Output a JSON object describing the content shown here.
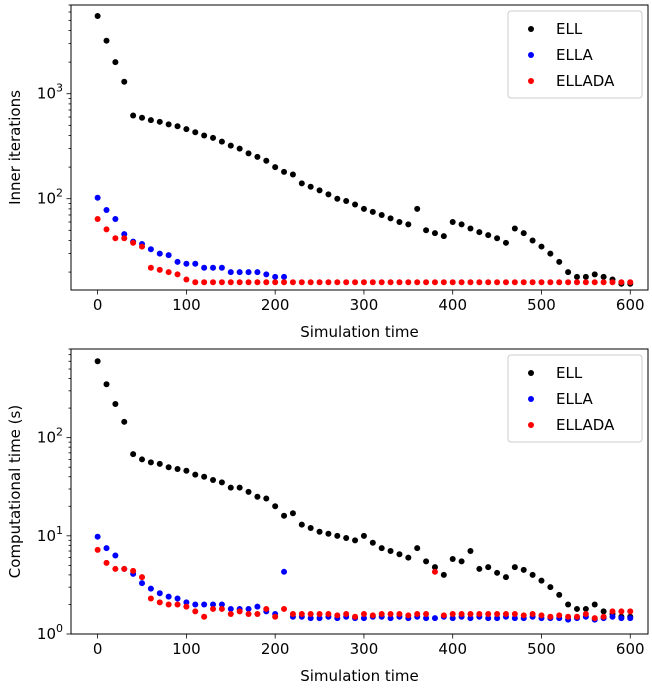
{
  "chart_data": [
    {
      "type": "scatter",
      "title": "",
      "xlabel": "Simulation time",
      "ylabel": "Inner iterations",
      "yscale": "log",
      "xlim": [
        -30,
        620
      ],
      "ylim": [
        13.5,
        7000
      ],
      "xticks": [
        0,
        100,
        200,
        300,
        400,
        500,
        600
      ],
      "yticks": [
        {
          "value": 100,
          "base": "10",
          "exp": "2"
        },
        {
          "value": 1000,
          "base": "10",
          "exp": "3"
        }
      ],
      "legend_position": "top-right",
      "series": [
        {
          "name": "ELL",
          "color": "#000000",
          "x": [
            0,
            10,
            20,
            30,
            40,
            50,
            60,
            70,
            80,
            90,
            100,
            110,
            120,
            130,
            140,
            150,
            160,
            170,
            180,
            190,
            200,
            210,
            220,
            230,
            240,
            250,
            260,
            270,
            280,
            290,
            300,
            310,
            320,
            330,
            340,
            350,
            360,
            370,
            380,
            390,
            400,
            410,
            420,
            430,
            440,
            450,
            460,
            470,
            480,
            490,
            500,
            510,
            520,
            530,
            540,
            550,
            560,
            570,
            580,
            590,
            600
          ],
          "y": [
            5500,
            3200,
            2000,
            1300,
            620,
            590,
            560,
            540,
            510,
            490,
            460,
            430,
            400,
            380,
            350,
            320,
            300,
            270,
            250,
            230,
            200,
            180,
            170,
            140,
            130,
            120,
            110,
            100,
            95,
            88,
            80,
            75,
            70,
            65,
            60,
            57,
            80,
            50,
            47,
            44,
            60,
            57,
            52,
            48,
            45,
            42,
            38,
            52,
            47,
            40,
            35,
            30,
            25,
            20,
            18,
            18,
            19,
            18,
            17,
            15.5,
            15.5
          ]
        },
        {
          "name": "ELLA",
          "color": "#0000ff",
          "x": [
            0,
            10,
            20,
            30,
            40,
            50,
            60,
            70,
            80,
            90,
            100,
            110,
            120,
            130,
            140,
            150,
            160,
            170,
            180,
            190,
            200,
            210
          ],
          "y": [
            102,
            78,
            64,
            46,
            39,
            37,
            33,
            30,
            29,
            25,
            24,
            24,
            22,
            22,
            22,
            20,
            20,
            20,
            20,
            19,
            18,
            18
          ]
        },
        {
          "name": "ELLADA",
          "color": "#ff0000",
          "x": [
            0,
            10,
            20,
            30,
            40,
            50,
            60,
            70,
            80,
            90,
            100,
            110,
            120,
            130,
            140,
            150,
            160,
            170,
            180,
            190,
            200,
            210,
            220,
            230,
            240,
            250,
            260,
            270,
            280,
            290,
            300,
            310,
            320,
            330,
            340,
            350,
            360,
            370,
            380,
            390,
            400,
            410,
            420,
            430,
            440,
            450,
            460,
            470,
            480,
            490,
            500,
            510,
            520,
            530,
            540,
            550,
            560,
            570,
            580,
            590,
            600
          ],
          "y": [
            64,
            51,
            42,
            42,
            38,
            35,
            22,
            21,
            20,
            19,
            17,
            16,
            16,
            16,
            16,
            16,
            16,
            16,
            16,
            16,
            16,
            16,
            16,
            16,
            16,
            16,
            16,
            16,
            16,
            16,
            16,
            16,
            16,
            16,
            16,
            16,
            16,
            16,
            16,
            16,
            16,
            16,
            16,
            16,
            16,
            16,
            16,
            16,
            16,
            16,
            16,
            16,
            16,
            16,
            16,
            16,
            16,
            16,
            16,
            16,
            16
          ]
        }
      ]
    },
    {
      "type": "scatter",
      "title": "",
      "xlabel": "Simulation time",
      "ylabel": "Computational time (s)",
      "yscale": "log",
      "xlim": [
        -30,
        620
      ],
      "ylim": [
        1,
        800
      ],
      "xticks": [
        0,
        100,
        200,
        300,
        400,
        500,
        600
      ],
      "yticks": [
        {
          "value": 1,
          "base": "10",
          "exp": "0"
        },
        {
          "value": 10,
          "base": "10",
          "exp": "1"
        },
        {
          "value": 100,
          "base": "10",
          "exp": "2"
        }
      ],
      "legend_position": "top-right",
      "series": [
        {
          "name": "ELL",
          "color": "#000000",
          "x": [
            0,
            10,
            20,
            30,
            40,
            50,
            60,
            70,
            80,
            90,
            100,
            110,
            120,
            130,
            140,
            150,
            160,
            170,
            180,
            190,
            200,
            210,
            220,
            230,
            240,
            250,
            260,
            270,
            280,
            290,
            300,
            310,
            320,
            330,
            340,
            350,
            360,
            370,
            380,
            390,
            400,
            410,
            420,
            430,
            440,
            450,
            460,
            470,
            480,
            490,
            500,
            510,
            520,
            530,
            540,
            550,
            560,
            570,
            580,
            590,
            600
          ],
          "y": [
            600,
            350,
            220,
            145,
            68,
            60,
            56,
            54,
            50,
            48,
            46,
            42,
            40,
            37,
            35,
            31,
            31,
            28,
            25,
            24,
            20,
            16,
            17,
            13,
            12,
            11,
            10.5,
            10,
            9.5,
            9,
            10,
            8.5,
            7.5,
            7,
            6.5,
            6,
            7.5,
            5.5,
            4.8,
            4.0,
            5.8,
            5.5,
            7,
            4.6,
            4.8,
            4.2,
            3.8,
            4.8,
            4.5,
            4.0,
            3.5,
            3.0,
            2.5,
            2.0,
            1.8,
            1.8,
            2.0,
            1.7,
            1.6,
            1.5,
            1.5
          ]
        },
        {
          "name": "ELLA",
          "color": "#0000ff",
          "x": [
            0,
            10,
            20,
            30,
            40,
            50,
            60,
            70,
            80,
            90,
            100,
            110,
            120,
            130,
            140,
            150,
            160,
            170,
            180,
            190,
            200,
            210,
            220,
            230,
            240,
            250,
            260,
            270,
            280,
            290,
            300,
            310,
            320,
            330,
            340,
            350,
            360,
            370,
            380,
            390,
            400,
            410,
            420,
            430,
            440,
            450,
            460,
            470,
            480,
            490,
            500,
            510,
            520,
            530,
            540,
            550,
            560,
            570,
            580,
            590,
            600
          ],
          "y": [
            9.8,
            7.5,
            6.3,
            4.6,
            4.1,
            3.3,
            2.9,
            2.6,
            2.4,
            2.3,
            2.1,
            2.0,
            2.0,
            2.0,
            2.0,
            1.8,
            1.8,
            1.8,
            1.9,
            1.7,
            1.6,
            4.3,
            1.5,
            1.5,
            1.45,
            1.45,
            1.5,
            1.45,
            1.5,
            1.45,
            1.45,
            1.5,
            1.5,
            1.45,
            1.5,
            1.45,
            1.5,
            1.45,
            1.45,
            1.5,
            1.45,
            1.5,
            1.45,
            1.5,
            1.45,
            1.45,
            1.5,
            1.45,
            1.45,
            1.5,
            1.45,
            1.45,
            1.45,
            1.4,
            1.45,
            1.5,
            1.4,
            1.45,
            1.5,
            1.45,
            1.45
          ]
        },
        {
          "name": "ELLADA",
          "color": "#ff0000",
          "x": [
            0,
            10,
            20,
            30,
            40,
            50,
            60,
            70,
            80,
            90,
            100,
            110,
            120,
            130,
            140,
            150,
            160,
            170,
            180,
            190,
            200,
            210,
            220,
            230,
            240,
            250,
            260,
            270,
            280,
            290,
            300,
            310,
            320,
            330,
            340,
            350,
            360,
            370,
            380,
            390,
            400,
            410,
            420,
            430,
            440,
            450,
            460,
            470,
            480,
            490,
            500,
            510,
            520,
            530,
            540,
            550,
            560,
            570,
            580,
            590,
            600
          ],
          "y": [
            7.2,
            5.3,
            4.6,
            4.6,
            4.4,
            3.8,
            2.3,
            2.1,
            2.0,
            2.0,
            1.9,
            1.7,
            1.5,
            1.8,
            1.8,
            1.6,
            1.7,
            1.6,
            1.6,
            1.8,
            1.5,
            1.8,
            1.6,
            1.6,
            1.6,
            1.6,
            1.6,
            1.55,
            1.6,
            1.5,
            1.6,
            1.55,
            1.6,
            1.6,
            1.6,
            1.55,
            1.6,
            1.6,
            4.3,
            1.55,
            1.6,
            1.6,
            1.6,
            1.6,
            1.6,
            1.6,
            1.6,
            1.6,
            1.55,
            1.6,
            1.55,
            1.5,
            1.55,
            1.5,
            1.5,
            1.6,
            1.45,
            1.5,
            1.7,
            1.7,
            1.7
          ]
        }
      ]
    }
  ]
}
